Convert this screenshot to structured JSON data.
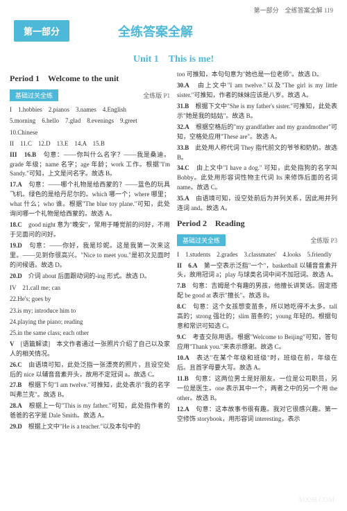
{
  "header": {
    "breadcrumb": "第一部分　全练答案全解",
    "pageNumber": "119"
  },
  "banner": {
    "tab": "第一部分",
    "title": "全练答案全解"
  },
  "unitTitle": "Unit 1　This is me!",
  "left": {
    "periodTitle": "Period 1　Welcome to the unit",
    "practiceLabel": "基础过关全练",
    "practicePage": "全练版 P1",
    "answers1": "I　1.hobbies　2.pianos　3.names　4.English",
    "answers2": "5.morning　6.hello　7.glad　8.evenings　9.greet",
    "answers3": "10.Chinese",
    "answers4": "II　11.C　12.D　13.E　14.A　15.B",
    "items": [
      {
        "q": "III　16.B",
        "t": "句意：——你叫什么名字？——我是桑迪。grade 年级；name 名字；age 年龄；work 工作。根据\"I'm Sandy.\"可知，上文是问名字。故选 B。"
      },
      {
        "q": "17.A",
        "t": "句意：——哪个礼物是给西蒙的？——蓝色的玩具飞机。绿色的是给丹尼尔的。which 哪一个；where 哪里；what 什么；who 谁。根据\"The blue toy plane.\"可知，此处询问哪一个礼物是给西蒙的。故选 A。"
      },
      {
        "q": "18.C",
        "t": "good night 意为\"晚安\"，常用于睡觉前的问好，不用于见面问的问好。"
      },
      {
        "q": "19.D",
        "t": "句意：——你好，我是珍妮。这是我第一次来这里。——见到你很高兴。\"Nice to meet you.\"是初次见面时的问候语。故选 D。"
      },
      {
        "q": "20.D",
        "t": "介词 about 后面跟动词的-ing 形式。故选 D。"
      }
    ],
    "iv": [
      "IV　21.call me; can",
      "22.He's; goes by",
      "23.is my; introduce him to",
      "24.playing the piano; reading",
      "25.in the same class; each other"
    ],
    "items2": [
      {
        "q": "V",
        "t": "[语篇解读]　本文作者通过一张照片介绍了自己以及家人的相关情况。"
      },
      {
        "q": "26.C",
        "t": "由语境可知，此处泛指一张漂亮的照片，且设空处后的 nice 以辅音音素开头，故用不定冠词 a。故选 C。"
      },
      {
        "q": "27.B",
        "t": "根据下句\"I am twelve.\"可推知，此处表示\"我的名字叫弗兰克\"。故选 B。"
      },
      {
        "q": "28.A",
        "t": "根据上一句\"This is my father.\"可知，此处指作者的爸爸的名字是 Dale Smith。故选 A。"
      },
      {
        "q": "29.D",
        "t": "根据上文中\"He is a teacher.\"以及本句中的"
      }
    ]
  },
  "right": {
    "itemsTop": [
      {
        "q": "",
        "t": "too 可推知，本句句意为\"她也是一位老师\"。故选 D。"
      },
      {
        "q": "30.A",
        "t": "由上文中\"I am twelve.\"以及\"The girl is my little sister.\"可推知，作者的妹妹应该是八岁。故选 A。"
      },
      {
        "q": "31.B",
        "t": "根据下文中\"She is my father's sister.\"可推知，此处表示\"她是我的姑姑\"。故选 B。"
      },
      {
        "q": "32.A",
        "t": "根据空格后的\"my grandfather and my grandmother\"可知，空格处应用\"These are\"。故选 A。"
      },
      {
        "q": "33.B",
        "t": "此处用人称代词 They 指代前文的爷爷和奶奶。故选 B。"
      },
      {
        "q": "34.C",
        "t": "由上文中\"I have a dog.\" 可知，此处指狗的名字叫 Bobby。此处用形容词性物主代词 Its 来修饰后面的名词 name。故选 C。"
      },
      {
        "q": "35.A",
        "t": "由语境可知，设空处前后为并列关系，因此用并列连词 and。故选 A。"
      }
    ],
    "periodTitle": "Period 2　Reading",
    "practiceLabel": "基础过关全练",
    "practicePage": "全练版 P3",
    "answers1": "I　1.students　2.grades　3.classmates'　4.looks　5.friendly",
    "items": [
      {
        "q": "II　6.A",
        "t": "第一空表示泛指\"一个\"，basketball 以辅音音素开头，故用冠词 a；play 与球类名词中间不加冠词。故选 A。"
      },
      {
        "q": "7.B",
        "t": "句意：吉姆是个有趣的男孩，他擅长讲笑话。固定搭配 be good at 表示\"擅长\"。故选 B。"
      },
      {
        "q": "8.C",
        "t": "句意：这个女孩想变苗条，所以她吃得不太多。tall 高的；strong 强壮的；slim 苗条的；young 年轻的。根据句意和常识可知选 C。"
      },
      {
        "q": "9.C",
        "t": "考查交际用语。根据\"Welcome to Beijing\"可知，答句应用\"Thank you.\"来表示感谢。故选 C。"
      },
      {
        "q": "10.A",
        "t": "表达\"在某个年级和班级\"时，班级在前，年级在后。且首字母要大写。故选 A。"
      },
      {
        "q": "11.B",
        "t": "句意：这两位男士是好朋友。一位是公司职员，另一位是医生。one 表示其中一个，两者之中的另一个用 the other。故选 B。"
      },
      {
        "q": "12.A",
        "t": "句意：这本故事书很有趣。我对它很感兴趣。第一空修饰 storybook，用形容词 interesting，表示"
      }
    ]
  },
  "watermark": "MX98.COM"
}
